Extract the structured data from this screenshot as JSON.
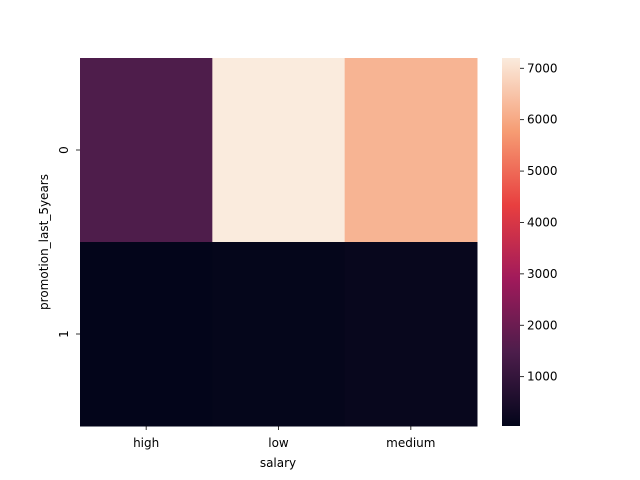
{
  "chart_data": {
    "type": "heatmap",
    "title": "",
    "xlabel": "salary",
    "ylabel": "promotion_last_5years",
    "x_categories": [
      "high",
      "low",
      "medium"
    ],
    "y_categories": [
      "0",
      "1"
    ],
    "values": [
      [
        1500,
        7200,
        6200
      ],
      [
        40,
        70,
        140
      ]
    ],
    "colorbar": {
      "range": [
        40,
        7200
      ],
      "ticks": [
        1000,
        2000,
        3000,
        4000,
        5000,
        6000,
        7000
      ],
      "tick_labels": [
        "1000",
        "2000",
        "3000",
        "4000",
        "5000",
        "6000",
        "7000"
      ]
    },
    "colormap": "rocket",
    "colormap_stops": [
      "#03051a",
      "#4c1d4b",
      "#a11a5b",
      "#e83f3f",
      "#f69c73",
      "#faebdd"
    ]
  }
}
